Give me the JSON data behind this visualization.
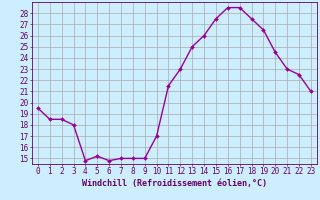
{
  "x": [
    0,
    1,
    2,
    3,
    4,
    5,
    6,
    7,
    8,
    9,
    10,
    11,
    12,
    13,
    14,
    15,
    16,
    17,
    18,
    19,
    20,
    21,
    22,
    23
  ],
  "y": [
    19.5,
    18.5,
    18.5,
    18.0,
    14.8,
    15.2,
    14.8,
    15.0,
    15.0,
    15.0,
    17.0,
    21.5,
    23.0,
    25.0,
    26.0,
    27.5,
    28.5,
    28.5,
    27.5,
    26.5,
    24.5,
    23.0,
    22.5,
    21.0
  ],
  "line_color": "#990099",
  "marker": "D",
  "marker_size": 2,
  "line_width": 1.0,
  "bg_color": "#cceeff",
  "grid_color": "#aaaaaa",
  "xlabel": "Windchill (Refroidissement éolien,°C)",
  "xlabel_color": "#660066",
  "xlabel_fontsize": 6,
  "ylim": [
    14.5,
    29.0
  ],
  "xlim": [
    -0.5,
    23.5
  ],
  "tick_fontsize": 5.5,
  "tick_color": "#660066"
}
